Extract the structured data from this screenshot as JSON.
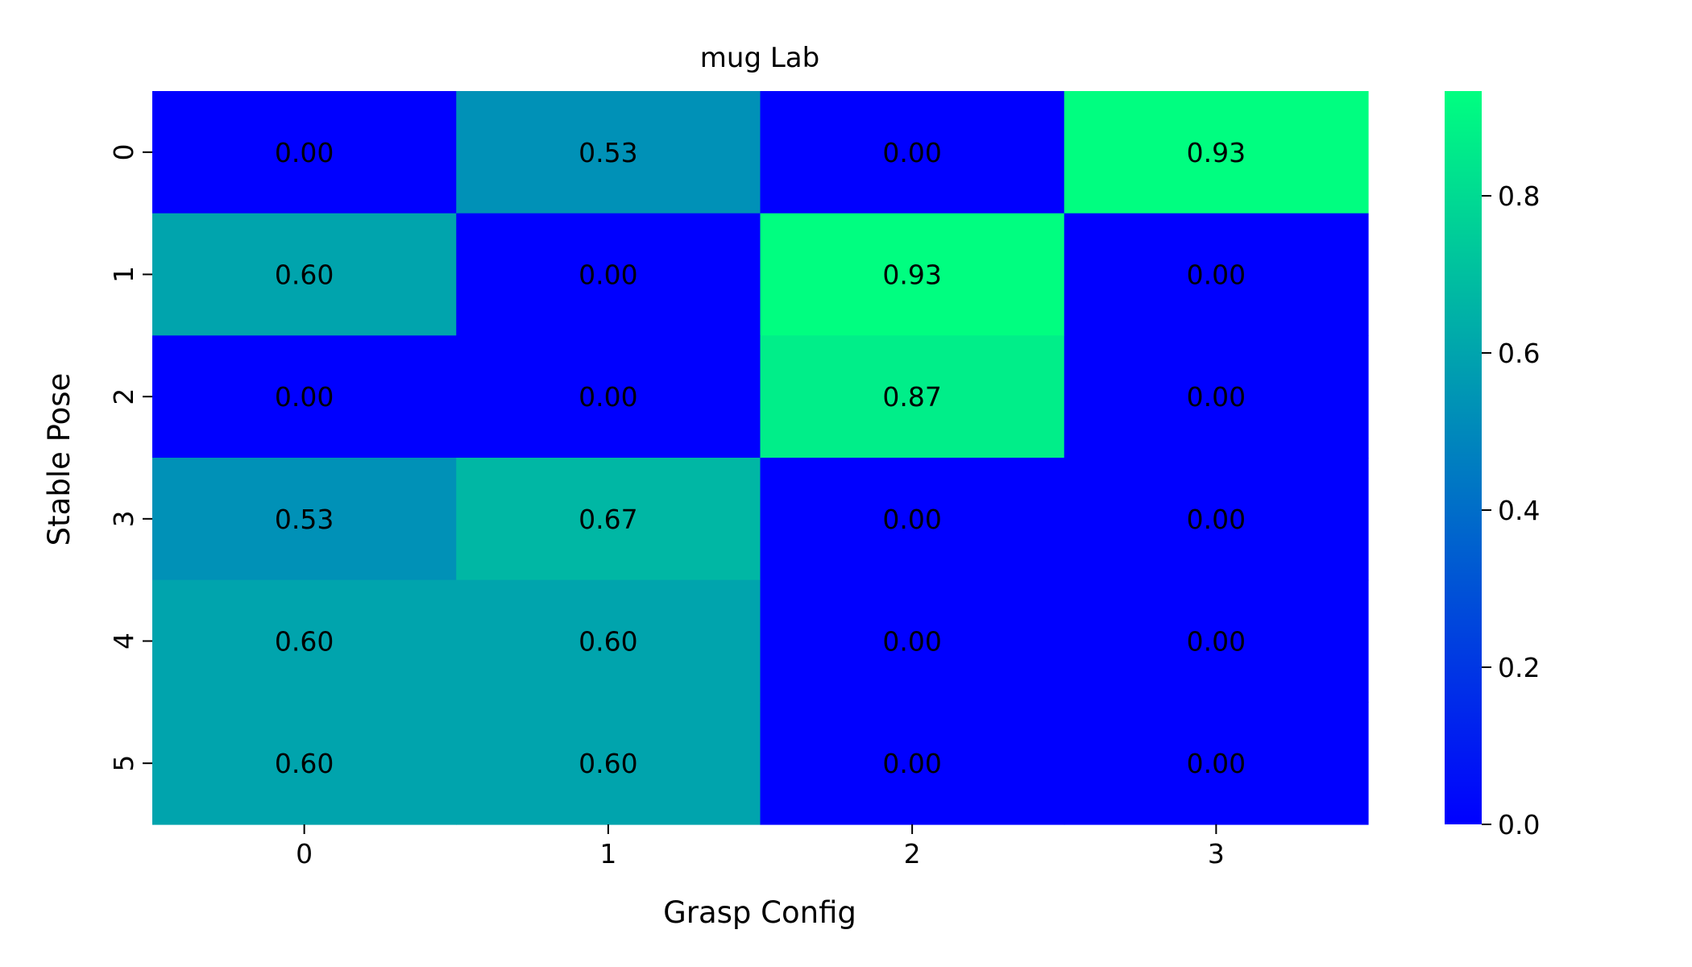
{
  "chart_data": {
    "type": "heatmap",
    "title": "mug Lab",
    "xlabel": "Grasp Config",
    "ylabel": "Stable Pose",
    "x_categories": [
      "0",
      "1",
      "2",
      "3"
    ],
    "y_categories": [
      "0",
      "1",
      "2",
      "3",
      "4",
      "5"
    ],
    "values": [
      [
        0.0,
        0.53,
        0.0,
        0.93
      ],
      [
        0.6,
        0.0,
        0.93,
        0.0
      ],
      [
        0.0,
        0.0,
        0.87,
        0.0
      ],
      [
        0.53,
        0.67,
        0.0,
        0.0
      ],
      [
        0.6,
        0.6,
        0.0,
        0.0
      ],
      [
        0.6,
        0.6,
        0.0,
        0.0
      ]
    ],
    "value_labels": [
      [
        "0.00",
        "0.53",
        "0.00",
        "0.93"
      ],
      [
        "0.60",
        "0.00",
        "0.93",
        "0.00"
      ],
      [
        "0.00",
        "0.00",
        "0.87",
        "0.00"
      ],
      [
        "0.53",
        "0.67",
        "0.00",
        "0.00"
      ],
      [
        "0.60",
        "0.60",
        "0.00",
        "0.00"
      ],
      [
        "0.60",
        "0.60",
        "0.00",
        "0.00"
      ]
    ],
    "colormap": "winter",
    "color_low": "#0000ff",
    "color_high": "#00ff80",
    "vmin": 0.0,
    "vmax": 0.9333,
    "colorbar_ticks": [
      0.0,
      0.2,
      0.4,
      0.6,
      0.8
    ],
    "colorbar_tick_labels": [
      "0.0",
      "0.2",
      "0.4",
      "0.6",
      "0.8"
    ],
    "grid": false,
    "colorbar_position": "right"
  }
}
